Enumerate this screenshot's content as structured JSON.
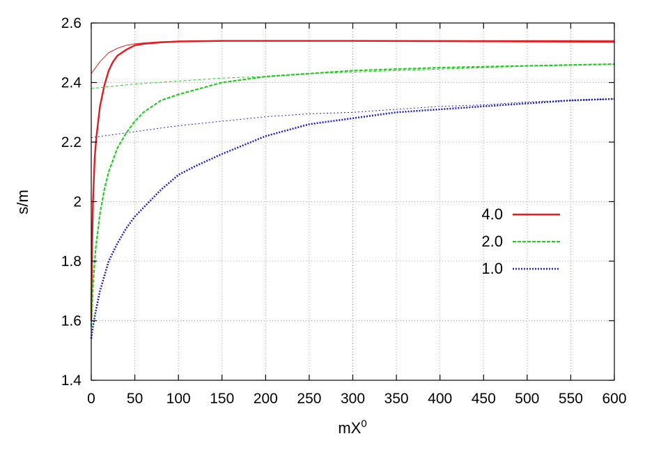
{
  "chart_data": {
    "type": "line",
    "xlabel": "mX",
    "xlabel_superscript": "0",
    "ylabel": "s/m",
    "xlim": [
      0,
      600
    ],
    "ylim": [
      1.4,
      2.6
    ],
    "xticks": [
      0,
      50,
      100,
      150,
      200,
      250,
      300,
      350,
      400,
      450,
      500,
      550,
      600
    ],
    "yticks": [
      1.4,
      1.6,
      1.8,
      2,
      2.2,
      2.4,
      2.6
    ],
    "ytick_labels": [
      "1.4",
      "1.6",
      "1.8",
      "2",
      "2.2",
      "2.4",
      "2.6"
    ],
    "grid": true,
    "legend_position": "center-right",
    "series": [
      {
        "name": "4.0",
        "color": "#e41a1c",
        "style": "solid",
        "x": [
          0,
          1,
          2,
          4,
          6,
          8,
          10,
          15,
          20,
          25,
          30,
          40,
          50,
          60,
          80,
          100,
          150,
          200,
          300,
          400,
          500,
          600
        ],
        "y": [
          1.6,
          1.85,
          2.0,
          2.15,
          2.22,
          2.27,
          2.32,
          2.39,
          2.44,
          2.47,
          2.49,
          2.51,
          2.525,
          2.53,
          2.535,
          2.538,
          2.54,
          2.54,
          2.54,
          2.539,
          2.538,
          2.537
        ]
      },
      {
        "name": "",
        "color": "#e41a1c",
        "style": "solid-thin",
        "x": [
          0,
          10,
          20,
          30,
          40,
          50,
          60,
          80,
          100,
          150,
          200,
          300,
          400,
          500,
          600
        ],
        "y": [
          2.43,
          2.47,
          2.5,
          2.515,
          2.525,
          2.53,
          2.533,
          2.537,
          2.539,
          2.54,
          2.541,
          2.541,
          2.541,
          2.541,
          2.541
        ]
      },
      {
        "name": "2.0",
        "color": "#22cc22",
        "style": "dashed",
        "x": [
          0,
          2,
          5,
          10,
          15,
          20,
          30,
          40,
          50,
          60,
          80,
          100,
          150,
          200,
          250,
          300,
          350,
          400,
          450,
          500,
          550,
          600
        ],
        "y": [
          1.58,
          1.72,
          1.84,
          1.96,
          2.04,
          2.1,
          2.18,
          2.23,
          2.27,
          2.3,
          2.34,
          2.36,
          2.4,
          2.42,
          2.43,
          2.44,
          2.445,
          2.45,
          2.453,
          2.456,
          2.459,
          2.462
        ]
      },
      {
        "name": "",
        "color": "#22cc22",
        "style": "dashed-thin",
        "x": [
          0,
          50,
          100,
          150,
          200,
          250,
          300,
          350,
          400,
          450,
          500,
          550,
          600
        ],
        "y": [
          2.38,
          2.395,
          2.405,
          2.415,
          2.42,
          2.43,
          2.435,
          2.44,
          2.445,
          2.45,
          2.455,
          2.458,
          2.462
        ]
      },
      {
        "name": "1.0",
        "color": "#1f1fcc",
        "style": "dotted",
        "x": [
          0,
          2,
          5,
          10,
          20,
          30,
          40,
          50,
          60,
          80,
          100,
          120,
          150,
          200,
          250,
          300,
          350,
          400,
          450,
          500,
          550,
          600
        ],
        "y": [
          1.54,
          1.58,
          1.63,
          1.7,
          1.8,
          1.86,
          1.91,
          1.95,
          1.98,
          2.04,
          2.09,
          2.12,
          2.16,
          2.22,
          2.26,
          2.28,
          2.3,
          2.31,
          2.32,
          2.33,
          2.34,
          2.345
        ]
      },
      {
        "name": "",
        "color": "#1f1fcc",
        "style": "dotted-thin",
        "x": [
          0,
          50,
          100,
          150,
          200,
          250,
          300,
          350,
          400,
          450,
          500,
          550,
          600
        ],
        "y": [
          2.215,
          2.235,
          2.255,
          2.27,
          2.285,
          2.295,
          2.3,
          2.31,
          2.32,
          2.325,
          2.335,
          2.34,
          2.345
        ]
      }
    ]
  }
}
